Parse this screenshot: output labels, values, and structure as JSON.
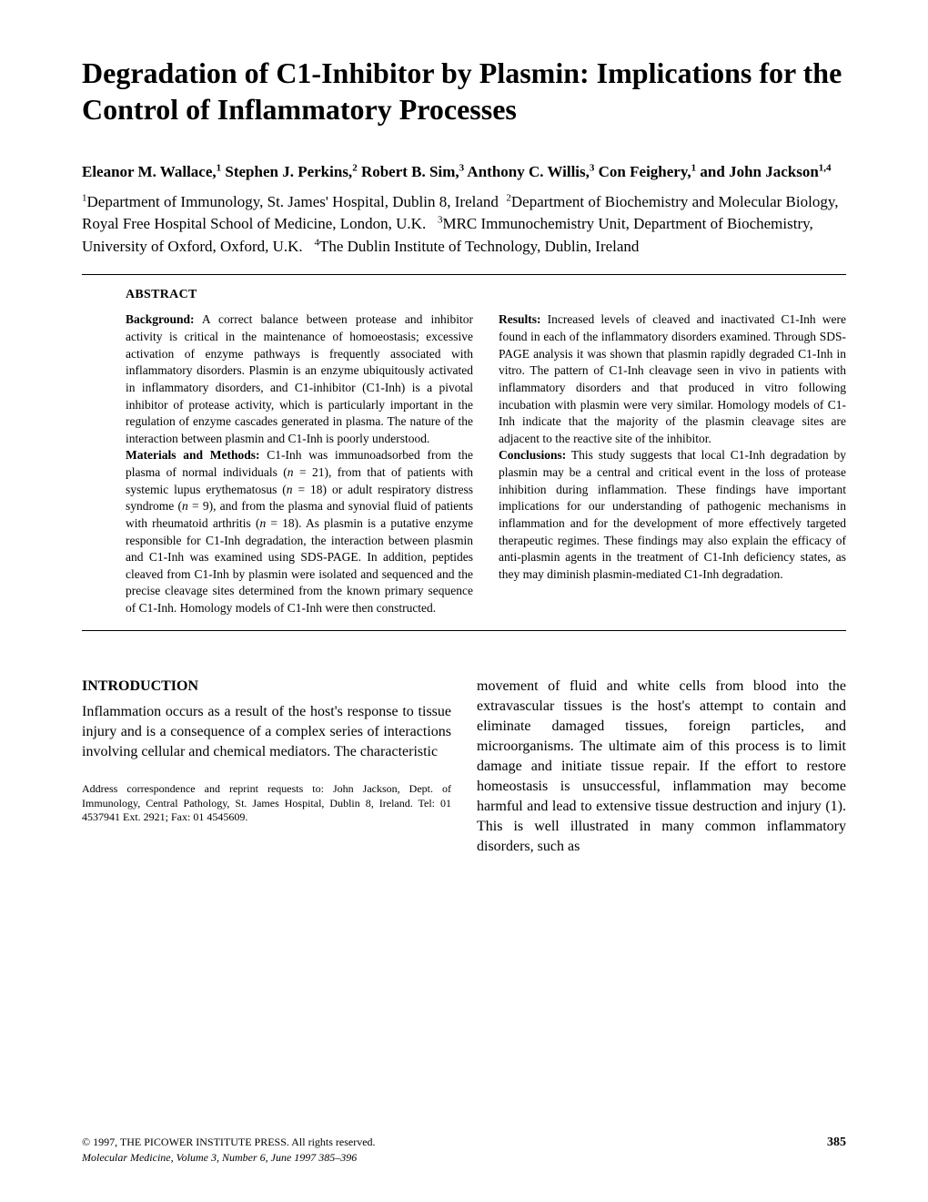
{
  "title": "Degradation of C1-Inhibitor by Plasmin: Implications for the Control of Inflammatory Processes",
  "authors_html": "Eleanor M. Wallace,<sup>1</sup> Stephen J. Perkins,<sup>2</sup> Robert B. Sim,<sup>3</sup> Anthony C. Willis,<sup>3</sup> Con Feighery,<sup>1</sup> and John Jackson<sup>1,4</sup>",
  "affiliations_html": "<sup>1</sup>Department of Immunology, St. James' Hospital, Dublin 8, Ireland &nbsp;<sup>2</sup>Department of Biochemistry and Molecular Biology, Royal Free Hospital School of Medicine, London, U.K. &nbsp;&nbsp;<sup>3</sup>MRC Immunochemistry Unit, Department of Biochemistry, University of Oxford, Oxford, U.K. &nbsp;&nbsp;<sup>4</sup>The Dublin Institute of Technology, Dublin, Ireland",
  "abstract_heading": "ABSTRACT",
  "abstract_left_html": "<b>Background:</b> A correct balance between protease and inhibitor activity is critical in the maintenance of homoeostasis; excessive activation of enzyme pathways is frequently associated with inflammatory disorders. Plasmin is an enzyme ubiquitously activated in inflammatory disorders, and C1-inhibitor (C1-Inh) is a pivotal inhibitor of protease activity, which is particularly important in the regulation of enzyme cascades generated in plasma. The nature of the interaction between plasmin and C1-Inh is poorly understood.<br><b>Materials and Methods:</b> C1-Inh was immunoadsorbed from the plasma of normal individuals (<i>n</i> = 21), from that of patients with systemic lupus erythematosus (<i>n</i> = 18) or adult respiratory distress syndrome (<i>n</i> = 9), and from the plasma and synovial fluid of patients with rheumatoid arthritis (<i>n</i> = 18). As plasmin is a putative enzyme responsible for C1-Inh degradation, the interaction between plasmin and C1-Inh was examined using SDS-PAGE. In addition, peptides cleaved from C1-Inh by plasmin were isolated and sequenced and the precise cleavage sites determined from the known primary sequence of C1-Inh. Homology models of C1-Inh were then constructed.",
  "abstract_right_html": "<b>Results:</b> Increased levels of cleaved and inactivated C1-Inh were found in each of the inflammatory disorders examined. Through SDS-PAGE analysis it was shown that plasmin rapidly degraded C1-Inh in vitro. The pattern of C1-Inh cleavage seen in vivo in patients with inflammatory disorders and that produced in vitro following incubation with plasmin were very similar. Homology models of C1-Inh indicate that the majority of the plasmin cleavage sites are adjacent to the reactive site of the inhibitor.<br><b>Conclusions:</b> This study suggests that local C1-Inh degradation by plasmin may be a central and critical event in the loss of protease inhibition during inflammation. These findings have important implications for our understanding of pathogenic mechanisms in inflammation and for the development of more effectively targeted therapeutic regimes. These findings may also explain the efficacy of anti-plasmin agents in the treatment of C1-Inh deficiency states, as they may diminish plasmin-mediated C1-Inh degradation.",
  "intro_heading": "INTRODUCTION",
  "intro_left": "Inflammation occurs as a result of the host's response to tissue injury and is a consequence of a complex series of interactions involving cellular and chemical mediators. The characteristic",
  "correspondence": "Address correspondence and reprint requests to: John Jackson, Dept. of Immunology, Central Pathology, St. James Hospital, Dublin 8, Ireland. Tel: 01 4537941 Ext. 2921; Fax: 01 4545609.",
  "intro_right": "movement of fluid and white cells from blood into the extravascular tissues is the host's attempt to contain and eliminate damaged tissues, foreign particles, and microorganisms. The ultimate aim of this process is to limit damage and initiate tissue repair. If the effort to restore homeostasis is unsuccessful, inflammation may become harmful and lead to extensive tissue destruction and injury (1). This is well illustrated in many common inflammatory disorders, such as",
  "copyright": "© 1997, THE PICOWER INSTITUTE PRESS. All rights reserved.",
  "journal_line": "Molecular Medicine, Volume 3, Number 6, June 1997  385–396",
  "page_number": "385"
}
